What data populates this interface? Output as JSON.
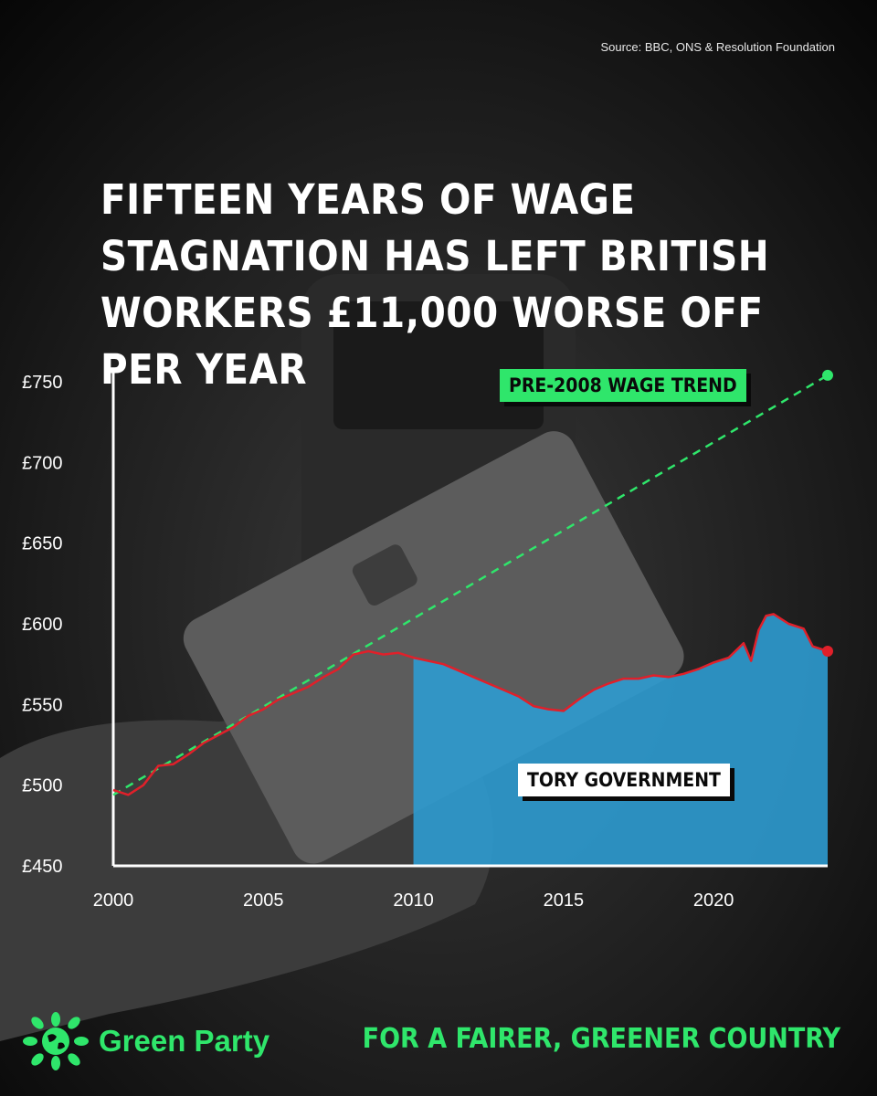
{
  "source": "Source: BBC, ONS & Resolution Foundation",
  "headline": "FIFTEEN YEARS OF WAGE STAGNATION HAS LEFT BRITISH WORKERS £11,000 WORSE OFF PER YEAR",
  "footer": {
    "brand": "Green Party",
    "slogan": "FOR A FAIRER, GREENER COUNTRY"
  },
  "colors": {
    "accent_green": "#2fe66b",
    "wage_line": "#e0202a",
    "tory_area": "#2e9bd0"
  },
  "chart_data": {
    "type": "line",
    "title": "",
    "xlabel": "",
    "ylabel": "",
    "xlim": [
      2000,
      2023.8
    ],
    "ylim": [
      450,
      750
    ],
    "xticks": [
      2000,
      2005,
      2010,
      2015,
      2020
    ],
    "xtick_labels": [
      "2000",
      "2005",
      "2010",
      "2015",
      "2020"
    ],
    "yticks": [
      450,
      500,
      550,
      600,
      650,
      700,
      750
    ],
    "ytick_labels": [
      "£450",
      "£500",
      "£550",
      "£600",
      "£650",
      "£700",
      "£750"
    ],
    "grid": false,
    "series": [
      {
        "name": "",
        "style": "solid",
        "x": [
          2000,
          2000.5,
          2001,
          2001.5,
          2002,
          2002.5,
          2003,
          2003.5,
          2004,
          2004.5,
          2005,
          2005.5,
          2006,
          2006.5,
          2007,
          2007.5,
          2008,
          2008.5,
          2009,
          2009.5,
          2010,
          2010.5,
          2011,
          2011.5,
          2012,
          2012.5,
          2013,
          2013.5,
          2014,
          2014.5,
          2015,
          2015.5,
          2016,
          2016.5,
          2017,
          2017.5,
          2018,
          2018.5,
          2019,
          2019.5,
          2020,
          2020.5,
          2021,
          2021.25,
          2021.5,
          2021.75,
          2022,
          2022.5,
          2023,
          2023.3,
          2023.8
        ],
        "values": [
          497,
          494,
          500,
          512,
          513,
          519,
          526,
          531,
          536,
          543,
          547,
          553,
          557,
          561,
          567,
          572,
          581,
          583,
          581,
          582,
          579,
          577,
          575,
          571,
          567,
          563,
          559,
          555,
          549,
          547,
          546,
          553,
          559,
          563,
          566,
          566,
          568,
          567,
          569,
          572,
          576,
          579,
          588,
          577,
          596,
          605,
          606,
          600,
          597,
          586,
          583
        ]
      },
      {
        "name": "PRE-2008 WAGE TREND",
        "style": "dashed",
        "x": [
          2000,
          2023.8
        ],
        "values": [
          494,
          754
        ]
      }
    ],
    "shaded_regions": [
      {
        "label": "TORY GOVERNMENT",
        "x_start": 2010,
        "x_end": 2023.8
      }
    ]
  }
}
